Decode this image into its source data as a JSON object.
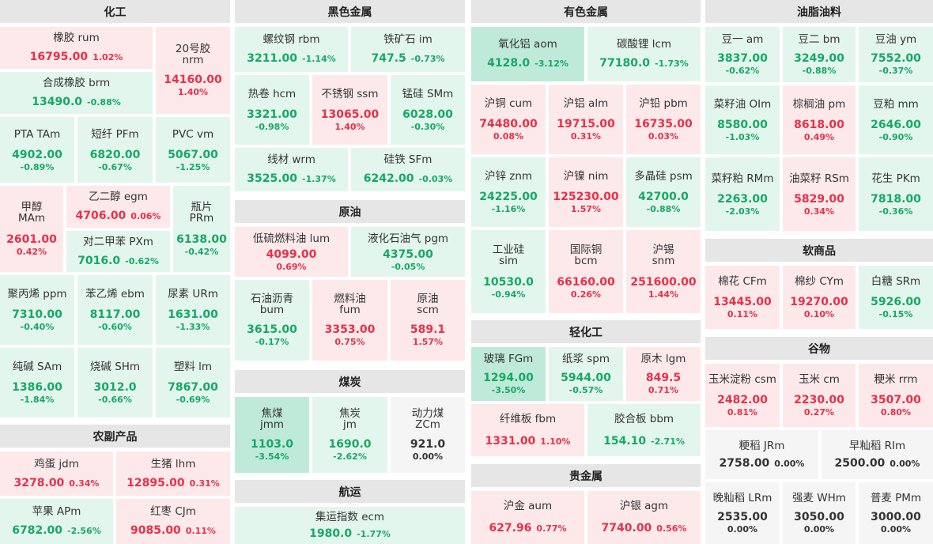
{
  "colors": {
    "up_bg": "#fde9ea",
    "down_bg": "#e3f6ee",
    "down_strong_bg": "#bfeada",
    "flat_bg": "#f5f5f5",
    "up_text": "#e8304a",
    "down_text": "#16a865",
    "header_bg": "#e6e6e6"
  },
  "sections": {
    "chemical": "化工",
    "agri": "农副产品",
    "ferrous": "黑色金属",
    "crude": "原油",
    "coal": "煤炭",
    "shipping": "航运",
    "nonferrous": "有色金属",
    "light": "轻化工",
    "precious": "贵金属",
    "oils": "油脂油料",
    "softs": "软商品",
    "grains": "谷物"
  },
  "tiles": {
    "rum": {
      "name": "橡胶  rum",
      "price": "16795.00",
      "change": "1.02%"
    },
    "nrm": {
      "name1": "20号胶",
      "name2": "nrm",
      "price": "14160.00",
      "change": "1.40%"
    },
    "brm": {
      "name": "合成橡胶  brm",
      "price": "13490.0",
      "change": "-0.88%"
    },
    "tam": {
      "name": "PTA  TAm",
      "price": "4902.00",
      "change": "-0.89%"
    },
    "pfm": {
      "name": "短纤  PFm",
      "price": "6820.00",
      "change": "-0.67%"
    },
    "vm": {
      "name": "PVC  vm",
      "price": "5067.00",
      "change": "-1.25%"
    },
    "mam": {
      "name1": "甲醇",
      "name2": "MAm",
      "price": "2601.00",
      "change": "0.42%"
    },
    "egm": {
      "name": "乙二醇  egm",
      "price": "4706.00",
      "change": "0.06%"
    },
    "prm": {
      "name1": "瓶片",
      "name2": "PRm",
      "price": "6138.00",
      "change": "-0.42%"
    },
    "pxm": {
      "name": "对二甲苯  PXm",
      "price": "7016.0",
      "change": "-0.62%"
    },
    "ppm": {
      "name": "聚丙烯  ppm",
      "price": "7310.00",
      "change": "-0.40%"
    },
    "ebm": {
      "name": "苯乙烯  ebm",
      "price": "8117.00",
      "change": "-0.60%"
    },
    "urm": {
      "name": "尿素  URm",
      "price": "1631.00",
      "change": "-1.33%"
    },
    "sam": {
      "name": "纯碱  SAm",
      "price": "1386.00",
      "change": "-1.84%"
    },
    "shm": {
      "name": "烧碱  SHm",
      "price": "3012.0",
      "change": "-0.66%"
    },
    "lm": {
      "name": "塑料  lm",
      "price": "7867.00",
      "change": "-0.69%"
    },
    "jdm": {
      "name": "鸡蛋  jdm",
      "price": "3278.00",
      "change": "0.34%"
    },
    "lhm": {
      "name": "生猪  lhm",
      "price": "12895.00",
      "change": "0.31%"
    },
    "apm": {
      "name": "苹果  APm",
      "price": "6782.00",
      "change": "-2.56%"
    },
    "cjm": {
      "name": "红枣  CJm",
      "price": "9085.00",
      "change": "0.11%"
    },
    "rbm": {
      "name": "螺纹钢  rbm",
      "price": "3211.00",
      "change": "-1.14%"
    },
    "im": {
      "name": "铁矿石  im",
      "price": "747.5",
      "change": "-0.73%"
    },
    "hcm": {
      "name": "热卷  hcm",
      "price": "3321.00",
      "change": "-0.98%"
    },
    "ssm": {
      "name": "不锈钢  ssm",
      "price": "13065.00",
      "change": "1.40%"
    },
    "smm": {
      "name": "锰硅  SMm",
      "price": "6028.00",
      "change": "-0.30%"
    },
    "wrm": {
      "name": "线材  wrm",
      "price": "3525.00",
      "change": "-1.37%"
    },
    "sfm": {
      "name": "硅铁  SFm",
      "price": "6242.00",
      "change": "-0.03%"
    },
    "lum": {
      "name": "低硫燃料油  lum",
      "price": "4099.00",
      "change": "0.69%"
    },
    "pgm": {
      "name": "液化石油气  pgm",
      "price": "4375.00",
      "change": "-0.05%"
    },
    "bum": {
      "name1": "石油沥青",
      "name2": "bum",
      "price": "3615.00",
      "change": "-0.17%"
    },
    "fum": {
      "name1": "燃料油",
      "name2": "fum",
      "price": "3353.00",
      "change": "0.75%"
    },
    "scm": {
      "name1": "原油",
      "name2": "scm",
      "price": "589.1",
      "change": "1.57%"
    },
    "jmm": {
      "name1": "焦煤",
      "name2": "jmm",
      "price": "1103.0",
      "change": "-3.54%"
    },
    "jm": {
      "name1": "焦炭",
      "name2": "jm",
      "price": "1690.0",
      "change": "-2.62%"
    },
    "zcm": {
      "name1": "动力煤",
      "name2": "ZCm",
      "price": "921.0",
      "change": "0.00%"
    },
    "ecm": {
      "name": "集运指数  ecm",
      "price": "1980.0",
      "change": "-1.77%"
    },
    "aom": {
      "name": "氧化铝  aom",
      "price": "4128.0",
      "change": "-3.12%"
    },
    "lcm": {
      "name": "碳酸锂  lcm",
      "price": "77180.0",
      "change": "-1.73%"
    },
    "cum": {
      "name": "沪铜  cum",
      "price": "74480.00",
      "change": "0.08%"
    },
    "alm": {
      "name": "沪铝  alm",
      "price": "19715.00",
      "change": "0.31%"
    },
    "pbm": {
      "name": "沪铅  pbm",
      "price": "16735.00",
      "change": "0.03%"
    },
    "znm": {
      "name": "沪锌  znm",
      "price": "24225.00",
      "change": "-1.16%"
    },
    "nim": {
      "name": "沪镍  nim",
      "price": "125230.00",
      "change": "1.57%"
    },
    "psm": {
      "name": "多晶硅  psm",
      "price": "42700.0",
      "change": "-0.88%"
    },
    "sim": {
      "name1": "工业硅",
      "name2": "sim",
      "price": "10530.0",
      "change": "-0.94%"
    },
    "bcm": {
      "name1": "国际铜",
      "name2": "bcm",
      "price": "66160.00",
      "change": "0.26%"
    },
    "snm": {
      "name1": "沪锡",
      "name2": "snm",
      "price": "251600.00",
      "change": "1.44%"
    },
    "fgm": {
      "name": "玻璃  FGm",
      "price": "1294.00",
      "change": "-3.50%"
    },
    "spm": {
      "name": "纸浆  spm",
      "price": "5944.00",
      "change": "-0.57%"
    },
    "lgm": {
      "name": "原木  lgm",
      "price": "849.5",
      "change": "0.71%"
    },
    "fbm": {
      "name": "纤维板  fbm",
      "price": "1331.00",
      "change": "1.10%"
    },
    "bbm": {
      "name": "胶合板  bbm",
      "price": "154.10",
      "change": "-2.71%"
    },
    "aum": {
      "name": "沪金  aum",
      "price": "627.96",
      "change": "0.77%"
    },
    "agm": {
      "name": "沪银  agm",
      "price": "7740.00",
      "change": "0.56%"
    },
    "am": {
      "name": "豆一  am",
      "price": "3837.00",
      "change": "-0.62%"
    },
    "bm": {
      "name": "豆二  bm",
      "price": "3249.00",
      "change": "-0.88%"
    },
    "ym": {
      "name": "豆油  ym",
      "price": "7552.00",
      "change": "-0.37%"
    },
    "oim": {
      "name": "菜籽油  OIm",
      "price": "8580.00",
      "change": "-1.03%"
    },
    "pm": {
      "name": "棕榈油  pm",
      "price": "8618.00",
      "change": "0.49%"
    },
    "mm": {
      "name": "豆粕  mm",
      "price": "2646.00",
      "change": "-0.90%"
    },
    "rmm": {
      "name": "菜籽粕  RMm",
      "price": "2263.00",
      "change": "-2.03%"
    },
    "rsm": {
      "name": "油菜籽  RSm",
      "price": "5829.00",
      "change": "0.34%"
    },
    "pkm": {
      "name": "花生  PKm",
      "price": "7818.00",
      "change": "-0.36%"
    },
    "cfm": {
      "name": "棉花  CFm",
      "price": "13445.00",
      "change": "0.11%"
    },
    "cym": {
      "name": "棉纱  CYm",
      "price": "19270.00",
      "change": "0.10%"
    },
    "srm": {
      "name": "白糖  SRm",
      "price": "5926.00",
      "change": "-0.15%"
    },
    "csm": {
      "name": "玉米淀粉  csm",
      "price": "2482.00",
      "change": "0.81%"
    },
    "cm": {
      "name": "玉米  cm",
      "price": "2230.00",
      "change": "0.27%"
    },
    "rrm": {
      "name": "粳米  rrm",
      "price": "3507.00",
      "change": "0.80%"
    },
    "jrm": {
      "name": "粳稻  JRm",
      "price": "2758.00",
      "change": "0.00%"
    },
    "rim": {
      "name": "早籼稻  RIm",
      "price": "2500.00",
      "change": "0.00%"
    },
    "lrm": {
      "name": "晚籼稻  LRm",
      "price": "2535.00",
      "change": "0.00%"
    },
    "whm": {
      "name": "强麦  WHm",
      "price": "3050.00",
      "change": "0.00%"
    },
    "pmm": {
      "name": "普麦  PMm",
      "price": "3000.00",
      "change": "0.00%"
    }
  }
}
